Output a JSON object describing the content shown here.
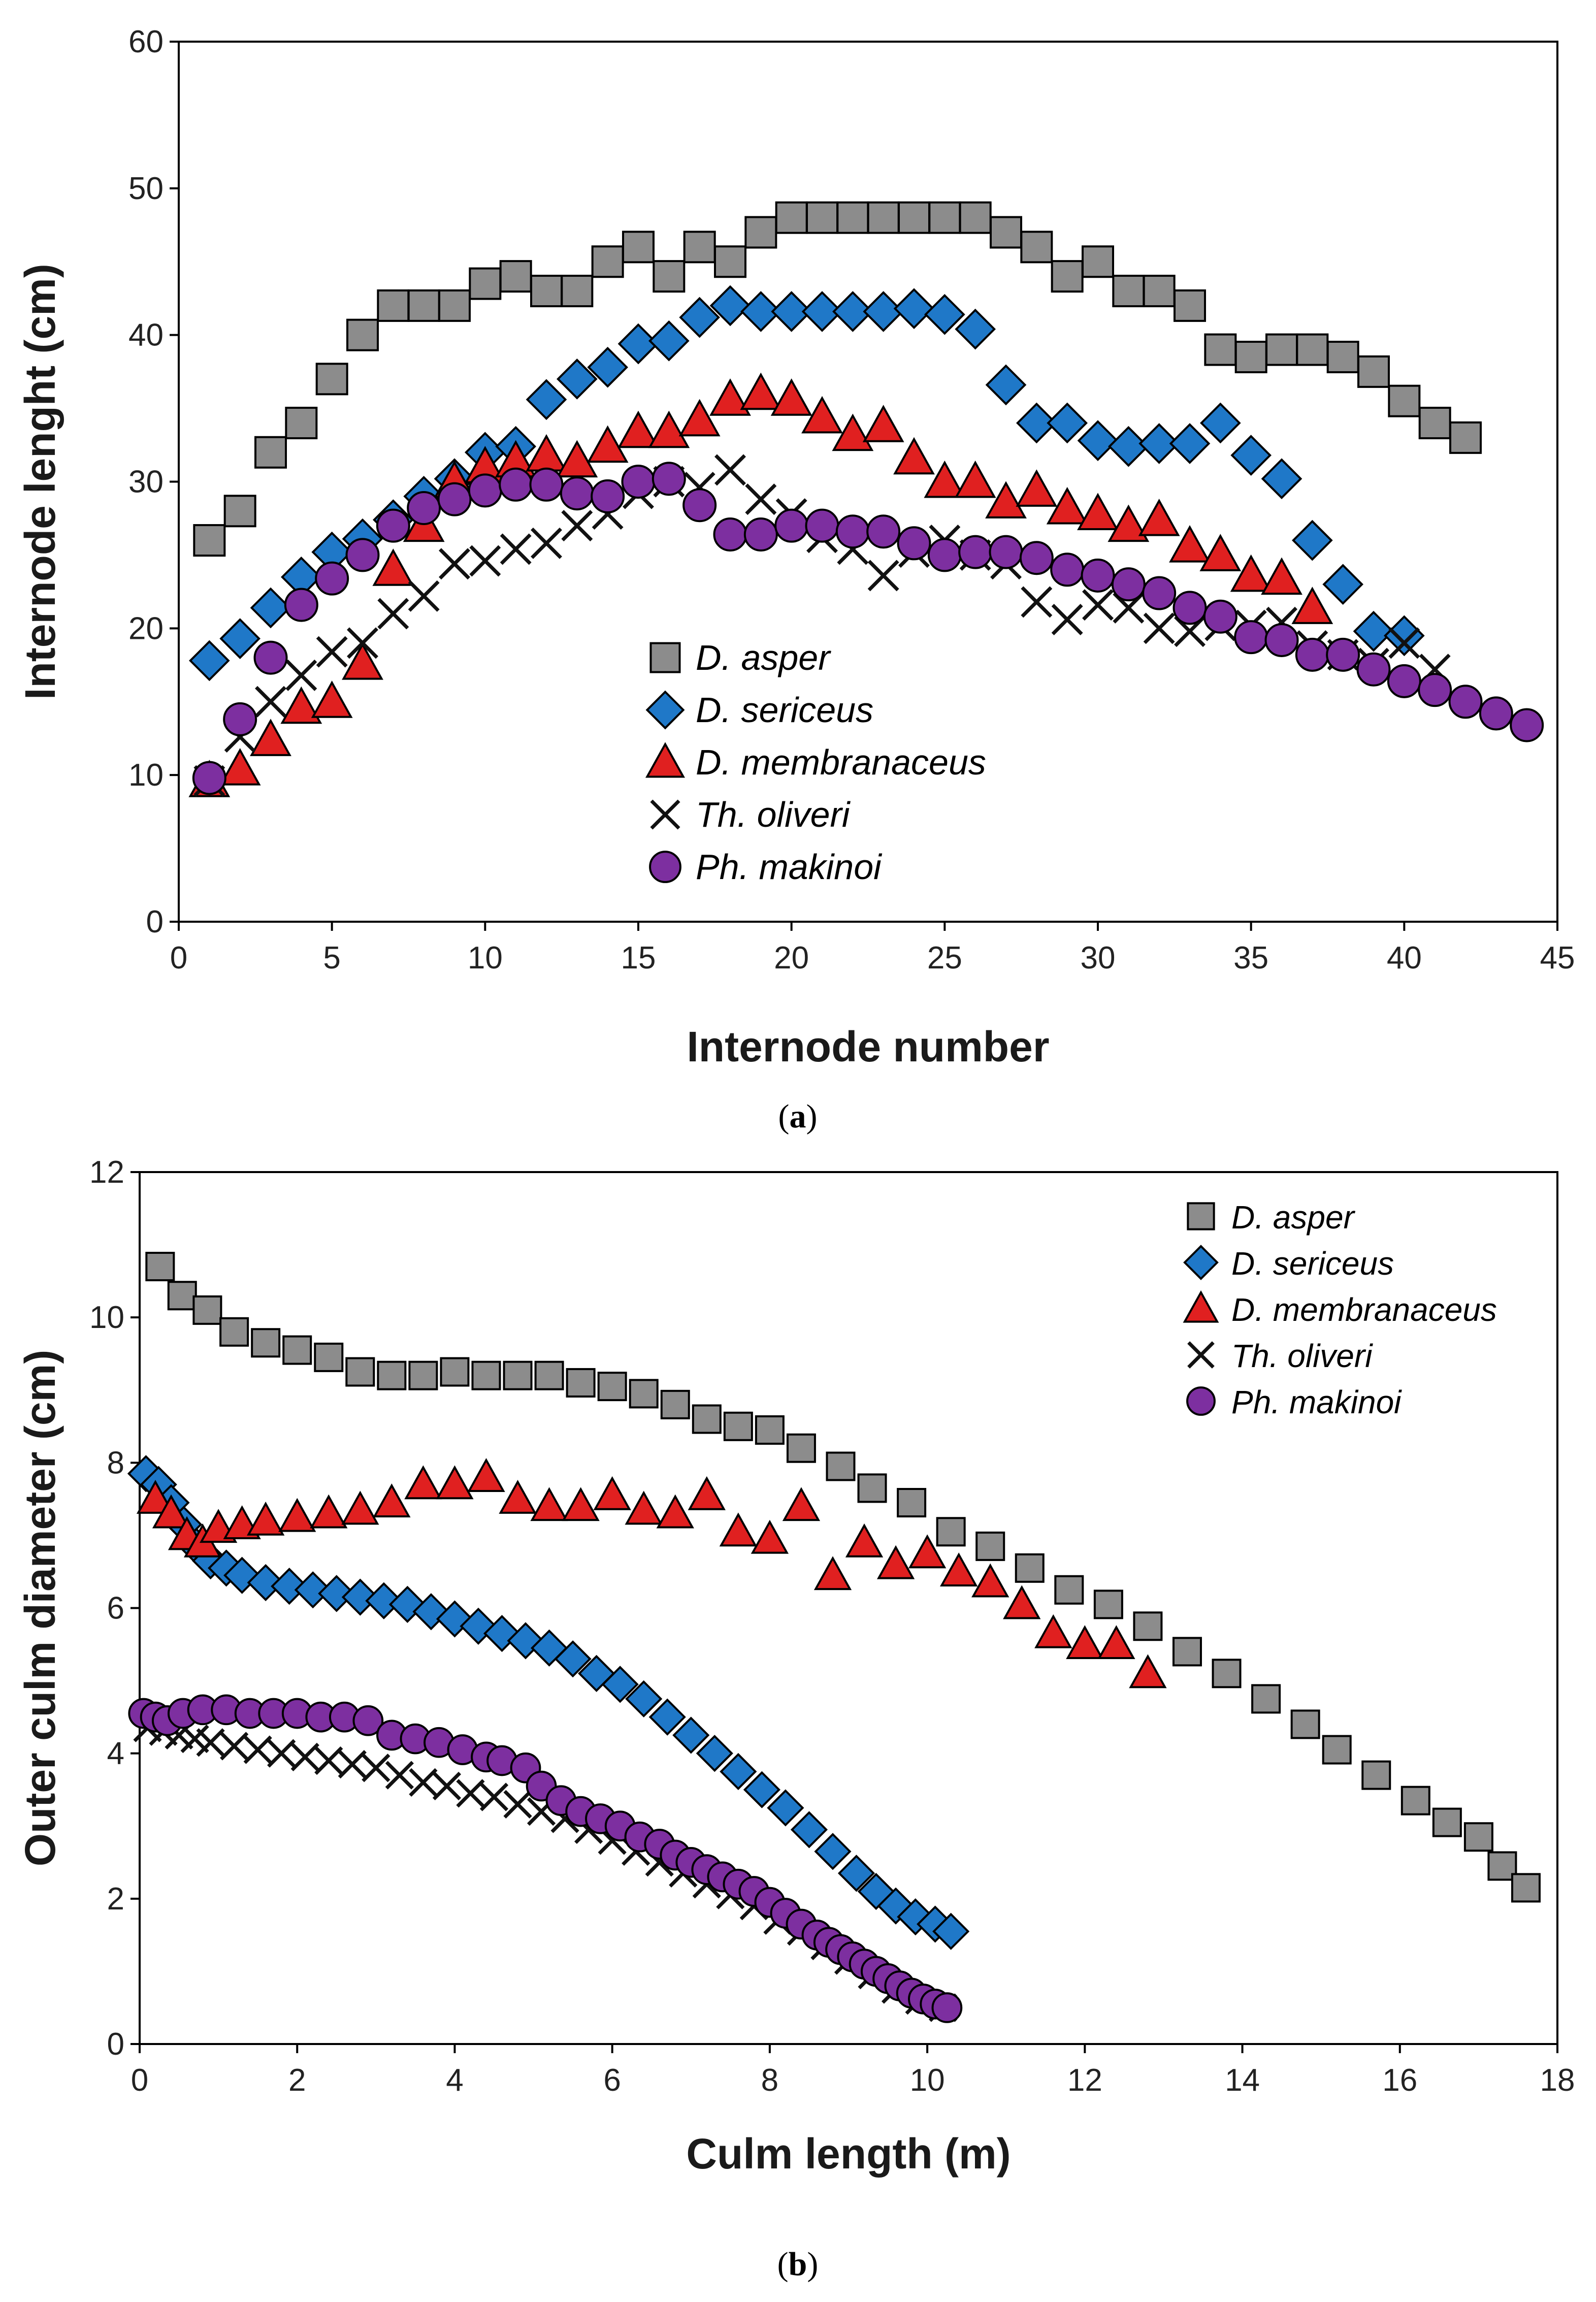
{
  "colors": {
    "asper": "#8c8c8c",
    "sericeus": "#1f78c8",
    "membranaceus": "#e02020",
    "oliveri": "#111111",
    "makinoi": "#7d2fa0",
    "frame": "#000000"
  },
  "chart_data": [
    {
      "type": "scatter",
      "panel": "a",
      "panel_label": {
        "open": "(",
        "letter": "a",
        "close": ")"
      },
      "title": "",
      "xlabel": "Internode number",
      "ylabel": "Internode lenght (cm)",
      "xlim": [
        0,
        45
      ],
      "ylim": [
        0,
        60
      ],
      "xticks": [
        0,
        5,
        10,
        15,
        20,
        25,
        30,
        35,
        40,
        45
      ],
      "yticks": [
        0,
        10,
        20,
        30,
        40,
        50,
        60
      ],
      "legend_position": "center",
      "series": [
        {
          "name": "D. asper",
          "key": "asper",
          "marker": "square",
          "x": [
            1,
            2,
            3,
            4,
            5,
            6,
            7,
            8,
            9,
            10,
            11,
            12,
            13,
            14,
            15,
            16,
            17,
            18,
            19,
            20,
            21,
            22,
            23,
            24,
            25,
            26,
            27,
            28,
            29,
            30,
            31,
            32,
            33,
            34,
            35,
            36,
            37,
            38,
            39,
            40,
            41,
            42
          ],
          "y": [
            26,
            28,
            32,
            34,
            37,
            40,
            42,
            42,
            42,
            43.5,
            44,
            43,
            43,
            45,
            46,
            44,
            46,
            45,
            47,
            48,
            48,
            48,
            48,
            48,
            48,
            48,
            47,
            46,
            44,
            45,
            43,
            43,
            42,
            39,
            38.5,
            39,
            39,
            38.5,
            37.5,
            35.5,
            34,
            33
          ]
        },
        {
          "name": "D. sericeus",
          "key": "sericeus",
          "marker": "diamond",
          "x": [
            1,
            2,
            3,
            4,
            5,
            6,
            7,
            8,
            9,
            10,
            11,
            12,
            13,
            14,
            15,
            16,
            17,
            18,
            19,
            20,
            21,
            22,
            23,
            24,
            25,
            26,
            27,
            28,
            29,
            30,
            31,
            32,
            33,
            34,
            35,
            36,
            37,
            38,
            39,
            40
          ],
          "y": [
            17.8,
            19.3,
            21.4,
            23.5,
            25.2,
            26.1,
            27.4,
            29,
            30.2,
            32,
            32.4,
            35.6,
            37,
            37.8,
            39.4,
            39.6,
            41.2,
            42,
            41.6,
            41.6,
            41.6,
            41.6,
            41.6,
            41.8,
            41.4,
            40.4,
            36.6,
            34,
            34,
            32.8,
            32.4,
            32.6,
            32.6,
            34,
            31.8,
            30.2,
            26,
            23,
            19.8,
            19.5
          ]
        },
        {
          "name": "D. membranaceus",
          "key": "membranaceus",
          "marker": "triangle",
          "x": [
            1,
            2,
            3,
            4,
            5,
            6,
            7,
            8,
            9,
            10,
            11,
            12,
            13,
            14,
            15,
            16,
            17,
            18,
            19,
            20,
            21,
            22,
            23,
            24,
            25,
            26,
            27,
            28,
            29,
            30,
            31,
            32,
            33,
            34,
            35,
            36,
            37
          ],
          "y": [
            9.6,
            10.4,
            12.4,
            14.6,
            15,
            17.6,
            24,
            27,
            30,
            31,
            31.4,
            31.8,
            31.4,
            32.4,
            33.4,
            33.4,
            34.2,
            35.6,
            36,
            35.6,
            34.4,
            33.2,
            33.8,
            31.6,
            30,
            30,
            28.6,
            29.4,
            28.2,
            27.8,
            27,
            27.4,
            25.6,
            25,
            23.6,
            23.4,
            21.4
          ]
        },
        {
          "name": "Th. oliveri",
          "key": "oliveri",
          "marker": "cross",
          "x": [
            1,
            2,
            3,
            4,
            5,
            6,
            7,
            8,
            9,
            10,
            11,
            12,
            13,
            14,
            15,
            16,
            17,
            18,
            19,
            20,
            21,
            22,
            23,
            24,
            25,
            26,
            27,
            28,
            29,
            30,
            31,
            32,
            33,
            34,
            35,
            36,
            37,
            38,
            39,
            40,
            41
          ],
          "y": [
            9.6,
            12.6,
            15,
            16.8,
            18.4,
            19,
            21,
            22.2,
            24.4,
            24.6,
            25.4,
            25.8,
            27,
            27.8,
            29.2,
            30,
            29.6,
            30.8,
            28.8,
            27.8,
            26.2,
            25.4,
            23.6,
            25.2,
            26,
            25,
            24.4,
            21.8,
            20.6,
            21.6,
            21.4,
            20,
            19.8,
            20.2,
            20.2,
            20.4,
            18.8,
            18.2,
            17.6,
            19,
            17.2
          ]
        },
        {
          "name": "Ph. makinoi",
          "key": "makinoi",
          "marker": "circle",
          "x": [
            1,
            2,
            3,
            4,
            5,
            6,
            7,
            8,
            9,
            10,
            11,
            12,
            13,
            14,
            15,
            16,
            17,
            18,
            19,
            20,
            21,
            22,
            23,
            24,
            25,
            26,
            27,
            28,
            29,
            30,
            31,
            32,
            33,
            34,
            35,
            36,
            37,
            38,
            39,
            40,
            41,
            42,
            43,
            44
          ],
          "y": [
            9.8,
            13.8,
            18,
            21.6,
            23.4,
            25,
            27,
            28.2,
            28.8,
            29.4,
            29.8,
            29.8,
            29.2,
            29,
            30,
            30.2,
            28.4,
            26.4,
            26.4,
            27,
            27,
            26.6,
            26.6,
            25.8,
            25,
            25.2,
            25.2,
            24.8,
            24,
            23.6,
            23,
            22.4,
            21.4,
            20.8,
            19.4,
            19.2,
            18.2,
            18.2,
            17.2,
            16.4,
            15.8,
            15,
            14.2,
            13.4
          ]
        }
      ]
    },
    {
      "type": "scatter",
      "panel": "b",
      "panel_label": {
        "open": "(",
        "letter": "b",
        "close": ")"
      },
      "title": "",
      "xlabel": "Culm length (m)",
      "ylabel": "Outer culm diameter (cm)",
      "xlim": [
        0,
        18
      ],
      "ylim": [
        0,
        12
      ],
      "xticks": [
        0,
        2,
        4,
        6,
        8,
        10,
        12,
        14,
        16,
        18
      ],
      "yticks": [
        0,
        2,
        4,
        6,
        8,
        10,
        12
      ],
      "legend_position": "top-right",
      "series": [
        {
          "name": "D. asper",
          "key": "asper",
          "marker": "square",
          "x": [
            0.26,
            0.54,
            0.86,
            1.2,
            1.6,
            2.0,
            2.4,
            2.8,
            3.2,
            3.6,
            4.0,
            4.4,
            4.8,
            5.2,
            5.6,
            6.0,
            6.4,
            6.8,
            7.2,
            7.6,
            8.0,
            8.4,
            8.9,
            9.3,
            9.8,
            10.3,
            10.8,
            11.3,
            11.8,
            12.3,
            12.8,
            13.3,
            13.8,
            14.3,
            14.8,
            15.2,
            15.7,
            16.2,
            16.6,
            17.0,
            17.3,
            17.6
          ],
          "y": [
            10.7,
            10.3,
            10.1,
            9.8,
            9.65,
            9.55,
            9.45,
            9.25,
            9.2,
            9.2,
            9.25,
            9.2,
            9.2,
            9.2,
            9.1,
            9.05,
            8.95,
            8.8,
            8.6,
            8.5,
            8.45,
            8.2,
            7.95,
            7.65,
            7.45,
            7.05,
            6.85,
            6.55,
            6.25,
            6.05,
            5.75,
            5.4,
            5.1,
            4.75,
            4.4,
            4.05,
            3.7,
            3.35,
            3.05,
            2.85,
            2.45,
            2.15
          ]
        },
        {
          "name": "D. sericeus",
          "key": "sericeus",
          "marker": "diamond",
          "x": [
            0.08,
            0.24,
            0.4,
            0.56,
            0.72,
            0.9,
            1.1,
            1.3,
            1.6,
            1.9,
            2.2,
            2.5,
            2.8,
            3.1,
            3.4,
            3.7,
            4.0,
            4.3,
            4.6,
            4.9,
            5.2,
            5.5,
            5.8,
            6.1,
            6.4,
            6.7,
            7.0,
            7.3,
            7.6,
            7.9,
            8.2,
            8.5,
            8.8,
            9.1,
            9.35,
            9.6,
            9.85,
            10.1,
            10.3
          ],
          "y": [
            7.85,
            7.7,
            7.45,
            7.15,
            6.85,
            6.65,
            6.55,
            6.45,
            6.35,
            6.3,
            6.25,
            6.2,
            6.15,
            6.1,
            6.05,
            5.95,
            5.85,
            5.75,
            5.65,
            5.55,
            5.45,
            5.3,
            5.1,
            4.95,
            4.75,
            4.5,
            4.25,
            4.0,
            3.75,
            3.5,
            3.25,
            2.95,
            2.65,
            2.35,
            2.1,
            1.9,
            1.75,
            1.65,
            1.55
          ]
        },
        {
          "name": "D. membranaceus",
          "key": "membranaceus",
          "marker": "triangle",
          "x": [
            0.2,
            0.4,
            0.6,
            0.8,
            1.0,
            1.3,
            1.6,
            2.0,
            2.4,
            2.8,
            3.2,
            3.6,
            4.0,
            4.4,
            4.8,
            5.2,
            5.6,
            6.0,
            6.4,
            6.8,
            7.2,
            7.6,
            8.0,
            8.4,
            8.8,
            9.2,
            9.6,
            10.0,
            10.4,
            10.8,
            11.2,
            11.6,
            12.0,
            12.4,
            12.8
          ],
          "y": [
            7.5,
            7.3,
            7.0,
            6.9,
            7.1,
            7.15,
            7.2,
            7.25,
            7.3,
            7.35,
            7.45,
            7.7,
            7.7,
            7.8,
            7.5,
            7.4,
            7.4,
            7.55,
            7.35,
            7.3,
            7.55,
            7.05,
            6.95,
            7.4,
            6.45,
            6.9,
            6.6,
            6.75,
            6.5,
            6.35,
            6.05,
            5.65,
            5.5,
            5.5,
            5.1
          ]
        },
        {
          "name": "Th. oliveri",
          "key": "oliveri",
          "marker": "cross",
          "x": [
            0.1,
            0.3,
            0.5,
            0.7,
            0.9,
            1.2,
            1.5,
            1.8,
            2.1,
            2.4,
            2.7,
            3.0,
            3.3,
            3.6,
            3.9,
            4.2,
            4.5,
            4.8,
            5.1,
            5.4,
            5.7,
            6.0,
            6.3,
            6.6,
            6.9,
            7.2,
            7.5,
            7.8,
            8.1,
            8.4,
            8.7,
            9.0,
            9.3,
            9.6,
            9.9,
            10.2
          ],
          "y": [
            4.35,
            4.3,
            4.25,
            4.2,
            4.15,
            4.1,
            4.05,
            4.0,
            3.95,
            3.9,
            3.85,
            3.8,
            3.7,
            3.6,
            3.55,
            3.45,
            3.4,
            3.3,
            3.2,
            3.1,
            2.95,
            2.8,
            2.65,
            2.5,
            2.35,
            2.2,
            2.05,
            1.9,
            1.7,
            1.55,
            1.35,
            1.15,
            0.95,
            0.75,
            0.6,
            0.5
          ]
        },
        {
          "name": "Ph. makinoi",
          "key": "makinoi",
          "marker": "circle",
          "x": [
            0.05,
            0.2,
            0.35,
            0.55,
            0.8,
            1.1,
            1.4,
            1.7,
            2.0,
            2.3,
            2.6,
            2.9,
            3.2,
            3.5,
            3.8,
            4.1,
            4.4,
            4.6,
            4.9,
            5.1,
            5.35,
            5.6,
            5.85,
            6.1,
            6.35,
            6.6,
            6.8,
            7.0,
            7.2,
            7.4,
            7.6,
            7.8,
            8.0,
            8.2,
            8.4,
            8.6,
            8.75,
            8.9,
            9.05,
            9.2,
            9.35,
            9.5,
            9.65,
            9.8,
            9.95,
            10.1,
            10.25
          ],
          "y": [
            4.55,
            4.5,
            4.45,
            4.55,
            4.6,
            4.6,
            4.55,
            4.55,
            4.55,
            4.5,
            4.5,
            4.45,
            4.25,
            4.2,
            4.15,
            4.05,
            3.95,
            3.9,
            3.8,
            3.55,
            3.35,
            3.2,
            3.1,
            3.0,
            2.85,
            2.75,
            2.6,
            2.5,
            2.4,
            2.3,
            2.2,
            2.1,
            1.95,
            1.8,
            1.65,
            1.5,
            1.4,
            1.3,
            1.2,
            1.1,
            1.0,
            0.9,
            0.8,
            0.7,
            0.62,
            0.55,
            0.5
          ]
        }
      ]
    }
  ]
}
